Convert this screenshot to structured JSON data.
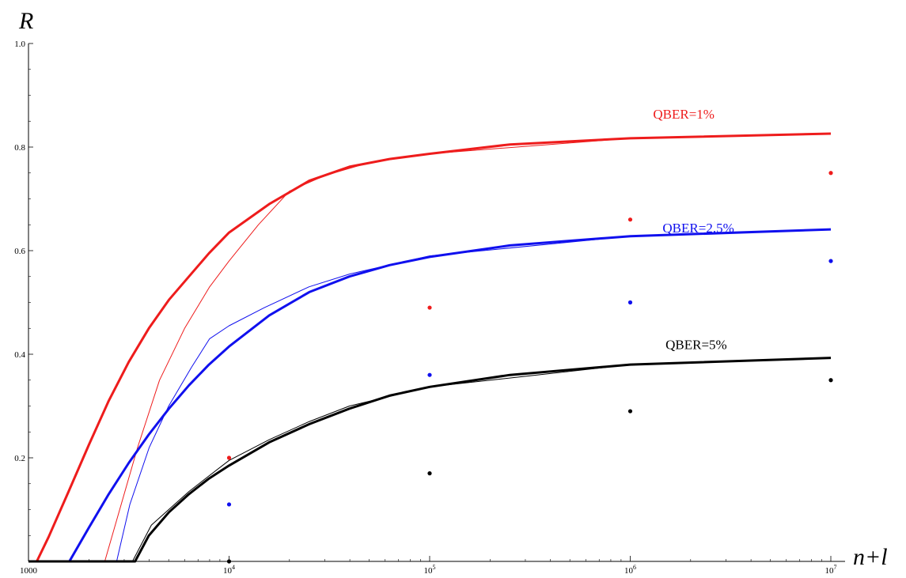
{
  "chart_data": {
    "type": "line",
    "title": "",
    "xlabel": "n+l",
    "ylabel": "R",
    "x_scale": "log",
    "xlim": [
      1000,
      10000000
    ],
    "ylim": [
      0,
      1.0
    ],
    "grid": false,
    "legend": "inline labels near curves",
    "x_ticks": [
      {
        "value": 1000,
        "base": "1000",
        "exp": ""
      },
      {
        "value": 10000,
        "base": "10",
        "exp": "4"
      },
      {
        "value": 100000,
        "base": "10",
        "exp": "5"
      },
      {
        "value": 1000000,
        "base": "10",
        "exp": "6"
      },
      {
        "value": 10000000,
        "base": "10",
        "exp": "7"
      }
    ],
    "y_ticks": [
      {
        "value": 0.2,
        "label": "0.2"
      },
      {
        "value": 0.4,
        "label": "0.4"
      },
      {
        "value": 0.6,
        "label": "0.6"
      },
      {
        "value": 0.8,
        "label": "0.8"
      },
      {
        "value": 1.0,
        "label": "1.0"
      }
    ],
    "series": [
      {
        "name": "QBER=1%",
        "color": "#ee1c1c",
        "label_at": {
          "x": 1300000,
          "y": 0.855
        },
        "thick": {
          "x": [
            1000,
            1100,
            1260,
            1585,
            2000,
            2512,
            3162,
            3981,
            5012,
            6310,
            7943,
            10000,
            15849,
            25119,
            39811,
            63096,
            100000,
            251189,
            1000000,
            10000000
          ],
          "y": [
            0,
            0,
            0.047,
            0.135,
            0.225,
            0.31,
            0.385,
            0.45,
            0.505,
            0.55,
            0.595,
            0.635,
            0.69,
            0.735,
            0.762,
            0.777,
            0.787,
            0.805,
            0.817,
            0.826
          ]
        },
        "thin": {
          "x": [
            1000,
            2400,
            2800,
            3500,
            4500,
            6000,
            8000,
            10000,
            14000,
            20000,
            30000,
            50000,
            100000,
            1000000,
            10000000
          ],
          "y": [
            0,
            0,
            0.09,
            0.22,
            0.35,
            0.45,
            0.53,
            0.58,
            0.65,
            0.715,
            0.745,
            0.77,
            0.787,
            0.817,
            0.826
          ]
        },
        "points": {
          "x": [
            10000,
            100000,
            1000000,
            10000000
          ],
          "y": [
            0.2,
            0.49,
            0.66,
            0.75
          ]
        }
      },
      {
        "name": "QBER=2.5%",
        "color": "#1010ee",
        "label_at": {
          "x": 1450000,
          "y": 0.635
        },
        "thick": {
          "x": [
            1000,
            1600,
            2000,
            2512,
            3162,
            3981,
            5012,
            6310,
            7943,
            10000,
            15849,
            25119,
            39811,
            63096,
            100000,
            251189,
            1000000,
            10000000
          ],
          "y": [
            0,
            0,
            0.065,
            0.13,
            0.19,
            0.245,
            0.295,
            0.34,
            0.38,
            0.415,
            0.475,
            0.52,
            0.55,
            0.572,
            0.588,
            0.61,
            0.628,
            0.641
          ]
        },
        "thin": {
          "x": [
            1000,
            2750,
            3200,
            4000,
            5000,
            6500,
            8000,
            10000,
            15000,
            25000,
            40000,
            100000,
            1000000,
            10000000
          ],
          "y": [
            0,
            0,
            0.11,
            0.22,
            0.3,
            0.375,
            0.43,
            0.455,
            0.49,
            0.53,
            0.555,
            0.59,
            0.628,
            0.641
          ]
        },
        "points": {
          "x": [
            10000,
            100000,
            1000000,
            10000000
          ],
          "y": [
            0.11,
            0.36,
            0.5,
            0.58
          ]
        }
      },
      {
        "name": "QBER=5%",
        "color": "#000000",
        "label_at": {
          "x": 1500000,
          "y": 0.41
        },
        "thick": {
          "x": [
            1000,
            3400,
            3981,
            5012,
            6310,
            7943,
            10000,
            15849,
            25119,
            39811,
            63096,
            100000,
            251189,
            1000000,
            10000000
          ],
          "y": [
            0,
            0,
            0.05,
            0.095,
            0.13,
            0.16,
            0.185,
            0.23,
            0.265,
            0.295,
            0.32,
            0.337,
            0.36,
            0.38,
            0.393
          ]
        },
        "thin": {
          "x": [
            1000,
            3300,
            4100,
            5000,
            6310,
            7943,
            10000,
            15849,
            25119,
            39811,
            100000,
            1000000,
            10000000
          ],
          "y": [
            0,
            0,
            0.07,
            0.1,
            0.135,
            0.165,
            0.195,
            0.235,
            0.27,
            0.3,
            0.337,
            0.38,
            0.393
          ]
        },
        "points": {
          "x": [
            10000,
            100000,
            1000000,
            10000000
          ],
          "y": [
            0.0,
            0.17,
            0.29,
            0.35
          ]
        }
      }
    ]
  }
}
